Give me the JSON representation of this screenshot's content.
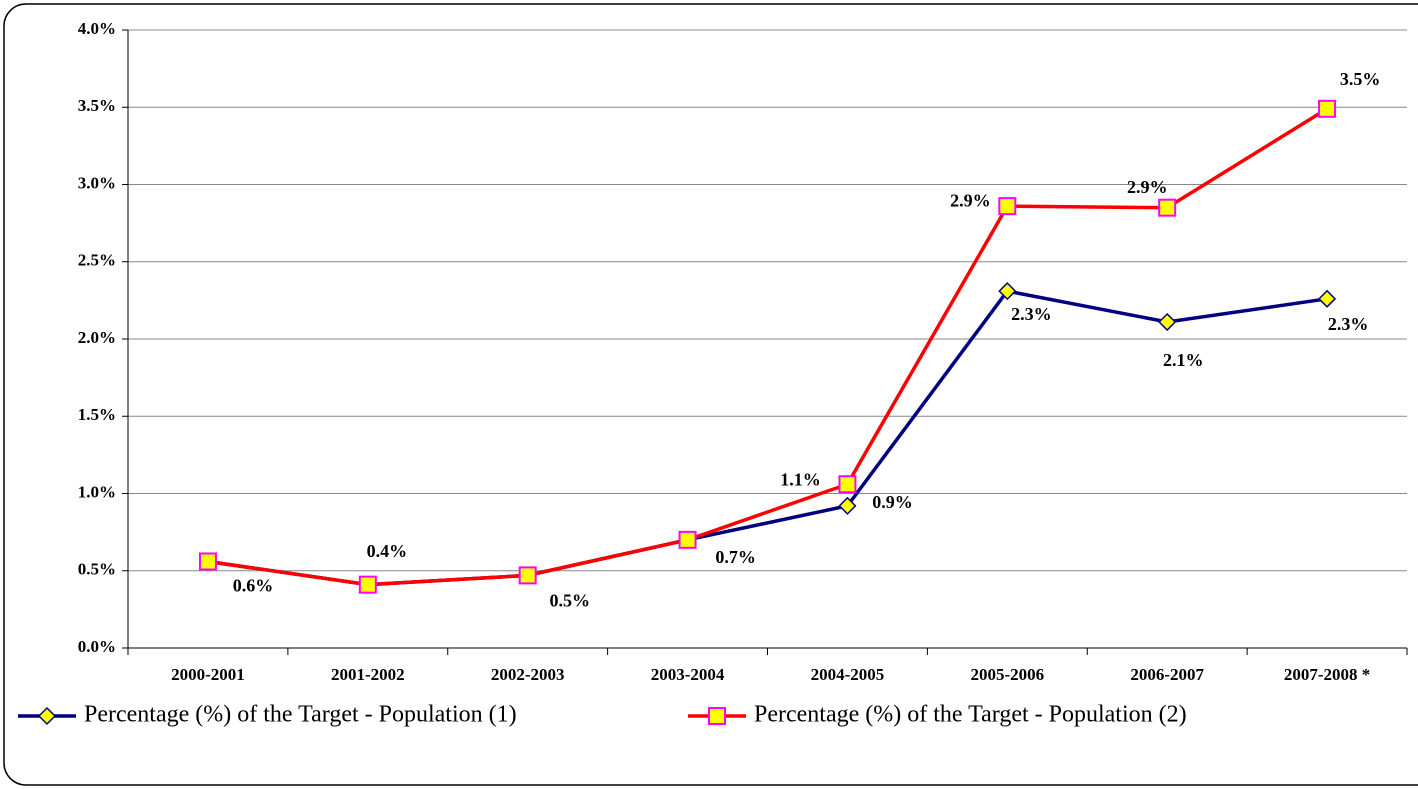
{
  "chart_data": {
    "type": "line",
    "categories": [
      "2000-2001",
      "2001-2002",
      "2002-2003",
      "2003-2004",
      "2004-2005",
      "2005-2006",
      "2006-2007",
      "2007-2008 *"
    ],
    "series": [
      {
        "name": "Percentage (%) of the Target - Population (1)",
        "color": "#000080",
        "marker": "diamond",
        "values": [
          0.56,
          0.41,
          0.47,
          0.7,
          0.92,
          2.31,
          2.11,
          2.26
        ],
        "value_labels": [
          "0.6%",
          "0.4%",
          "0.5%",
          "0.7%",
          "0.9%",
          "2.3%",
          "2.1%",
          "2.3%"
        ]
      },
      {
        "name": "Percentage (%) of the Target - Population (2)",
        "color": "#ff0000",
        "marker": "square",
        "values": [
          0.56,
          0.41,
          0.47,
          0.7,
          1.06,
          2.86,
          2.85,
          3.49
        ],
        "value_labels": [
          null,
          null,
          null,
          null,
          "1.1%",
          "2.9%",
          "2.9%",
          "3.5%"
        ]
      }
    ],
    "ylim": [
      0,
      4
    ],
    "yticks": [
      {
        "value": 0,
        "label": "0.0%"
      },
      {
        "value": 0.5,
        "label": "0.5%"
      },
      {
        "value": 1,
        "label": "1.0%"
      },
      {
        "value": 1.5,
        "label": "1.5%"
      },
      {
        "value": 2,
        "label": "2.0%"
      },
      {
        "value": 2.5,
        "label": "2.5%"
      },
      {
        "value": 3,
        "label": "3.0%"
      },
      {
        "value": 3.5,
        "label": "3.5%"
      },
      {
        "value": 4,
        "label": "4.0%"
      }
    ],
    "grid": true,
    "legend": "bottom"
  }
}
